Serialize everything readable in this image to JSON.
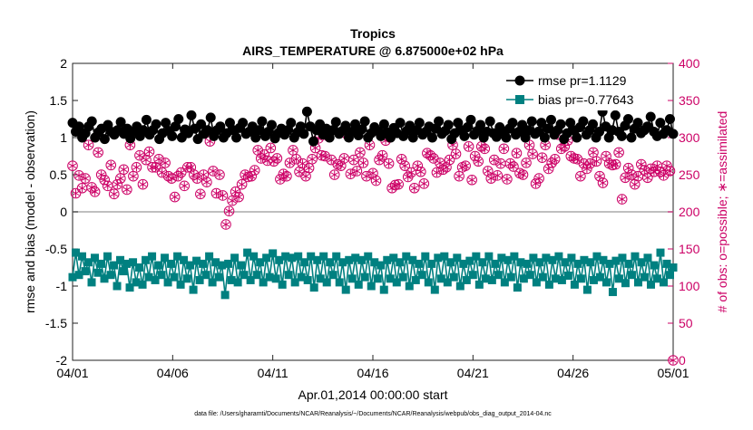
{
  "chart_data": {
    "type": "line",
    "title": "Tropics",
    "subtitle": "AIRS_TEMPERATURE @ 6.875000e+02 hPa",
    "xlabel": "Apr.01,2014 00:00:00 start",
    "ylabel_left": "rmse and bias (model - observation)",
    "ylabel_right": "# of obs: o=possible; ∗=assimilated",
    "footnote": "data file: /Users/gharamti/Documents/NCAR/Reanalysis/~/Documents/NCAR/Reanalysis/webpub/obs_diag_output_2014-04.nc",
    "xlim": [
      0,
      30
    ],
    "ylim_left": [
      -2,
      2
    ],
    "ylim_right": [
      0,
      400
    ],
    "x_ticks": [
      0,
      5,
      10,
      15,
      20,
      25,
      30
    ],
    "x_tick_labels": [
      "04/01",
      "04/06",
      "04/11",
      "04/16",
      "04/21",
      "04/26",
      "05/01"
    ],
    "y_left_ticks": [
      -2,
      -1.5,
      -1,
      -0.5,
      0,
      0.5,
      1,
      1.5,
      2
    ],
    "y_left_tick_labels": [
      "-2",
      "-1.5",
      "-1",
      "-0.5",
      "0",
      "0.5",
      "1",
      "1.5",
      "2"
    ],
    "y_right_ticks": [
      0,
      50,
      100,
      150,
      200,
      250,
      300,
      350,
      400
    ],
    "y_right_tick_labels": [
      "0",
      "50",
      "100",
      "150",
      "200",
      "250",
      "300",
      "350",
      "400"
    ],
    "legend": [
      "rmse pr=1.1129",
      "bias pr=-0.77643"
    ],
    "legend_position": "top-right",
    "colors": {
      "rmse": "#000000",
      "bias": "#008080",
      "obs": "#cc0066",
      "zero_line": "#aaaaaa"
    },
    "series": [
      {
        "name": "rmse",
        "axis": "left",
        "values": [
          1.2,
          1.08,
          1.15,
          1.0,
          1.06,
          1.15,
          1.22,
          1.0,
          1.07,
          1.12,
          0.98,
          1.17,
          1.08,
          1.04,
          1.1,
          1.21,
          1.05,
          1.12,
          0.99,
          1.08,
          1.15,
          1.02,
          1.1,
          1.24,
          1.04,
          1.1,
          1.18,
          0.98,
          1.06,
          1.2,
          1.09,
          1.02,
          1.15,
          1.25,
          1.0,
          1.11,
          1.06,
          1.3,
          1.12,
          0.98,
          1.18,
          1.05,
          1.1,
          1.27,
          1.02,
          1.1,
          1.15,
          1.0,
          1.06,
          1.2,
          1.1,
          1.0,
          1.13,
          1.2,
          1.05,
          1.08,
          1.15,
          1.0,
          1.1,
          1.22,
          1.02,
          1.08,
          1.17,
          0.99,
          1.06,
          1.12,
          1.04,
          1.1,
          1.2,
          1.0,
          1.07,
          1.15,
          1.05,
          1.35,
          1.15,
          0.95,
          1.1,
          1.18,
          1.04,
          1.12,
          1.0,
          1.1,
          1.21,
          1.05,
          1.09,
          1.16,
          1.0,
          1.08,
          1.18,
          1.03,
          1.11,
          1.22,
          1.0,
          1.06,
          1.14,
          1.09,
          1.02,
          1.18,
          1.07,
          1.0,
          1.13,
          1.06,
          1.2,
          1.02,
          1.09,
          1.16,
          1.0,
          1.1,
          1.2,
          1.04,
          1.08,
          1.15,
          1.0,
          1.12,
          1.22,
          1.05,
          1.09,
          1.17,
          0.98,
          1.06,
          1.2,
          1.1,
          1.02,
          1.14,
          1.24,
          1.04,
          1.09,
          1.17,
          1.0,
          1.08,
          1.22,
          1.06,
          1.01,
          1.14,
          1.08,
          1.0,
          1.12,
          1.2,
          1.04,
          1.08,
          1.17,
          1.0,
          1.1,
          1.22,
          1.05,
          1.08,
          1.2,
          1.0,
          1.12,
          1.24,
          1.04,
          1.1,
          1.18,
          0.98,
          1.06,
          1.2,
          1.1,
          1.0,
          1.14,
          1.22,
          1.04,
          1.1,
          1.18,
          1.0,
          1.08,
          1.35,
          1.15,
          1.0,
          1.1,
          1.3,
          1.08,
          1.02,
          1.16,
          1.25,
          1.0,
          1.12,
          1.2,
          1.06,
          1.1,
          1.15,
          1.28,
          1.08,
          1.02,
          1.2,
          1.05,
          1.1,
          1.25,
          1.05
        ]
      },
      {
        "name": "bias",
        "axis": "left",
        "values": [
          -0.88,
          -0.55,
          -0.85,
          -0.6,
          -0.8,
          -0.68,
          -0.95,
          -0.62,
          -0.82,
          -0.7,
          -0.9,
          -0.6,
          -0.85,
          -0.72,
          -1.0,
          -0.65,
          -0.8,
          -0.7,
          -1.02,
          -0.68,
          -0.95,
          -0.75,
          -0.98,
          -0.65,
          -0.88,
          -0.6,
          -0.92,
          -0.72,
          -0.85,
          -0.62,
          -0.95,
          -0.7,
          -0.88,
          -0.6,
          -0.98,
          -0.65,
          -0.9,
          -0.72,
          -1.05,
          -0.66,
          -0.92,
          -0.7,
          -0.85,
          -0.6,
          -0.95,
          -0.68,
          -0.88,
          -0.72,
          -1.12,
          -0.7,
          -0.92,
          -0.62,
          -0.95,
          -0.72,
          -0.85,
          -0.55,
          -0.92,
          -0.6,
          -0.85,
          -0.68,
          -0.95,
          -0.62,
          -0.88,
          -0.56,
          -0.9,
          -0.65,
          -0.98,
          -0.6,
          -0.85,
          -0.62,
          -0.95,
          -0.6,
          -0.88,
          -0.68,
          -0.92,
          -0.6,
          -1.02,
          -0.65,
          -0.9,
          -0.6,
          -0.95,
          -0.68,
          -0.85,
          -0.6,
          -0.95,
          -0.68,
          -1.05,
          -0.65,
          -0.9,
          -0.62,
          -0.98,
          -0.65,
          -0.88,
          -0.6,
          -1.0,
          -0.68,
          -0.9,
          -0.72,
          -1.05,
          -0.65,
          -0.9,
          -0.62,
          -0.95,
          -0.68,
          -0.88,
          -0.6,
          -1.0,
          -0.65,
          -0.92,
          -0.7,
          -0.85,
          -0.6,
          -0.95,
          -0.7,
          -1.05,
          -0.62,
          -0.9,
          -0.6,
          -0.95,
          -0.68,
          -0.88,
          -0.62,
          -1.0,
          -0.7,
          -0.92,
          -0.66,
          -0.85,
          -0.6,
          -0.98,
          -0.68,
          -0.9,
          -0.6,
          -0.92,
          -0.7,
          -0.85,
          -0.62,
          -0.95,
          -0.65,
          -0.88,
          -0.6,
          -1.02,
          -0.68,
          -0.9,
          -0.7,
          -0.85,
          -0.62,
          -0.95,
          -0.68,
          -0.88,
          -0.62,
          -0.98,
          -0.65,
          -0.9,
          -0.6,
          -0.92,
          -0.68,
          -0.86,
          -0.62,
          -0.98,
          -0.7,
          -0.9,
          -0.65,
          -1.05,
          -0.68,
          -0.92,
          -0.6,
          -0.88,
          -0.65,
          -0.95,
          -0.7,
          -1.08,
          -0.66,
          -0.9,
          -0.62,
          -0.96,
          -0.7,
          -0.85,
          -0.6,
          -0.95,
          -0.68,
          -0.88,
          -0.62,
          -0.98,
          -0.72,
          -0.9,
          -0.55,
          -0.95,
          -0.7,
          -0.85,
          -0.75
        ]
      },
      {
        "name": "obs possible",
        "axis": "right",
        "marker": "circle",
        "values": [
          262,
          225,
          249,
          232,
          245,
          290,
          233,
          227,
          280,
          250,
          243,
          235,
          263,
          224,
          237,
          245,
          257,
          230,
          290,
          248,
          260,
          276,
          237,
          270,
          281,
          260,
          260,
          271,
          253,
          266,
          248,
          245,
          220,
          248,
          253,
          235,
          260,
          260,
          250,
          245,
          224,
          250,
          240,
          295,
          255,
          225,
          250,
          222,
          183,
          201,
          215,
          227,
          220,
          237,
          250,
          247,
          248,
          256,
          283,
          272,
          277,
          269,
          286,
          268,
          272,
          244,
          251,
          248,
          266,
          283,
          271,
          254,
          265,
          248,
          259,
          271,
          286,
          299,
          276,
          275,
          302,
          270,
          250,
          264,
          262,
          272,
          304,
          251,
          270,
          255,
          280,
          266,
          248,
          290,
          252,
          242,
          270,
          276,
          296,
          265,
          232,
          236,
          237,
          271,
          262,
          247,
          253,
          232,
          262,
          254,
          238,
          279,
          276,
          272,
          253,
          266,
          257,
          260,
          270,
          290,
          278,
          248,
          260,
          262,
          288,
          243,
          275,
          268,
          288,
          285,
          255,
          245,
          270,
          249,
          265,
          285,
          244,
          265,
          261,
          279,
          252,
          250,
          266,
          290,
          278,
          238,
          245,
          273,
          290,
          258,
          266,
          271,
          304,
          285,
          288,
          296,
          275,
          272,
          271,
          248,
          265,
          258,
          265,
          280,
          268,
          248,
          239,
          275,
          265,
          263,
          264,
          280,
          217,
          246,
          259,
          250,
          237,
          248,
          264,
          256,
          246,
          258,
          254,
          262,
          254,
          249,
          262,
          255,
          0
        ]
      },
      {
        "name": "obs assimilated",
        "axis": "right",
        "marker": "asterisk",
        "values": [
          262,
          225,
          249,
          232,
          245,
          290,
          233,
          227,
          280,
          250,
          243,
          235,
          263,
          224,
          237,
          245,
          257,
          230,
          290,
          248,
          260,
          276,
          237,
          270,
          281,
          260,
          260,
          271,
          253,
          266,
          248,
          245,
          220,
          248,
          253,
          235,
          260,
          260,
          250,
          245,
          224,
          250,
          240,
          295,
          255,
          225,
          250,
          222,
          183,
          201,
          215,
          227,
          220,
          237,
          250,
          247,
          248,
          256,
          283,
          272,
          277,
          269,
          286,
          268,
          272,
          244,
          251,
          248,
          266,
          283,
          271,
          254,
          265,
          248,
          259,
          271,
          286,
          299,
          276,
          275,
          302,
          270,
          250,
          264,
          262,
          272,
          304,
          251,
          270,
          255,
          280,
          266,
          248,
          290,
          252,
          242,
          270,
          276,
          296,
          265,
          232,
          236,
          237,
          271,
          262,
          247,
          253,
          232,
          262,
          254,
          238,
          279,
          276,
          272,
          253,
          266,
          257,
          260,
          270,
          290,
          278,
          248,
          260,
          262,
          288,
          243,
          275,
          268,
          288,
          285,
          255,
          245,
          270,
          249,
          265,
          285,
          244,
          265,
          261,
          279,
          252,
          250,
          266,
          290,
          278,
          238,
          245,
          273,
          290,
          258,
          266,
          271,
          304,
          285,
          288,
          296,
          275,
          272,
          271,
          248,
          265,
          258,
          265,
          280,
          268,
          248,
          239,
          275,
          265,
          263,
          264,
          280,
          217,
          246,
          259,
          250,
          237,
          248,
          264,
          256,
          246,
          258,
          254,
          262,
          254,
          249,
          262,
          255,
          0
        ]
      }
    ]
  }
}
